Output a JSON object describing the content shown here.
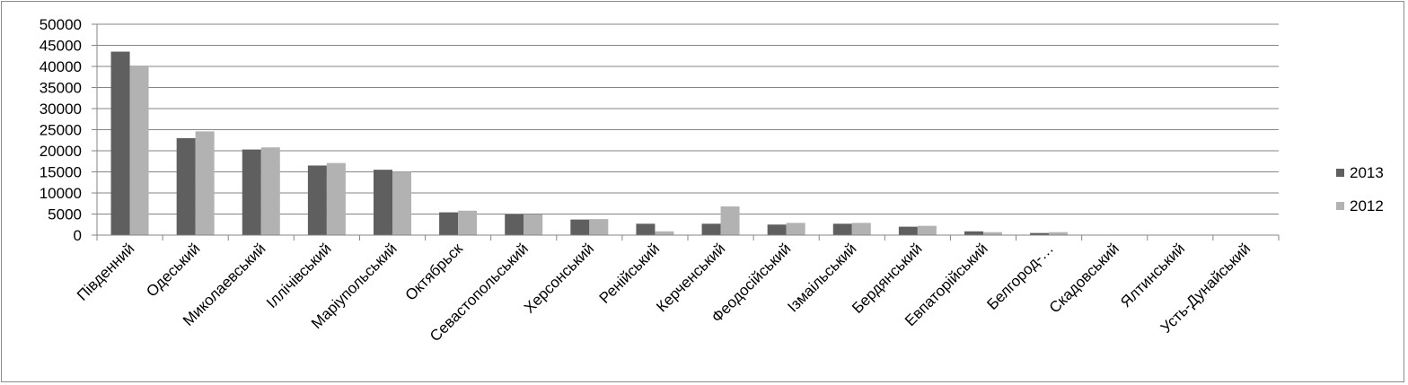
{
  "chart_data": {
    "type": "bar",
    "categories": [
      "Південний",
      "Одеський",
      "Миколаевський",
      "Іллічівський",
      "Маріупольський",
      "Октябрьск",
      "Севастопольський",
      "Херсонський",
      "Ренійський",
      "Керченський",
      "Феодосійський",
      "Ізмаільський",
      "Бердянський",
      "Евпаторійський",
      "Белгород-…",
      "Скадовський",
      "Ялтинський",
      "Усть-Дунайський"
    ],
    "series": [
      {
        "name": "2013",
        "color": "#5f5f5f",
        "values": [
          43500,
          23000,
          20300,
          16500,
          15500,
          5400,
          4900,
          3700,
          2700,
          2700,
          2500,
          2700,
          2000,
          900,
          500,
          0,
          0,
          0
        ]
      },
      {
        "name": "2012",
        "color": "#b2b2b2",
        "values": [
          40200,
          24600,
          20800,
          17100,
          15000,
          5800,
          4900,
          3800,
          900,
          6800,
          2900,
          2900,
          2200,
          700,
          700,
          0,
          0,
          0
        ]
      }
    ],
    "yticks": [
      "0",
      "5000",
      "10000",
      "15000",
      "20000",
      "25000",
      "30000",
      "35000",
      "40000",
      "45000",
      "50000"
    ],
    "ylim": [
      0,
      50000
    ],
    "grid": true,
    "legend": "right"
  }
}
